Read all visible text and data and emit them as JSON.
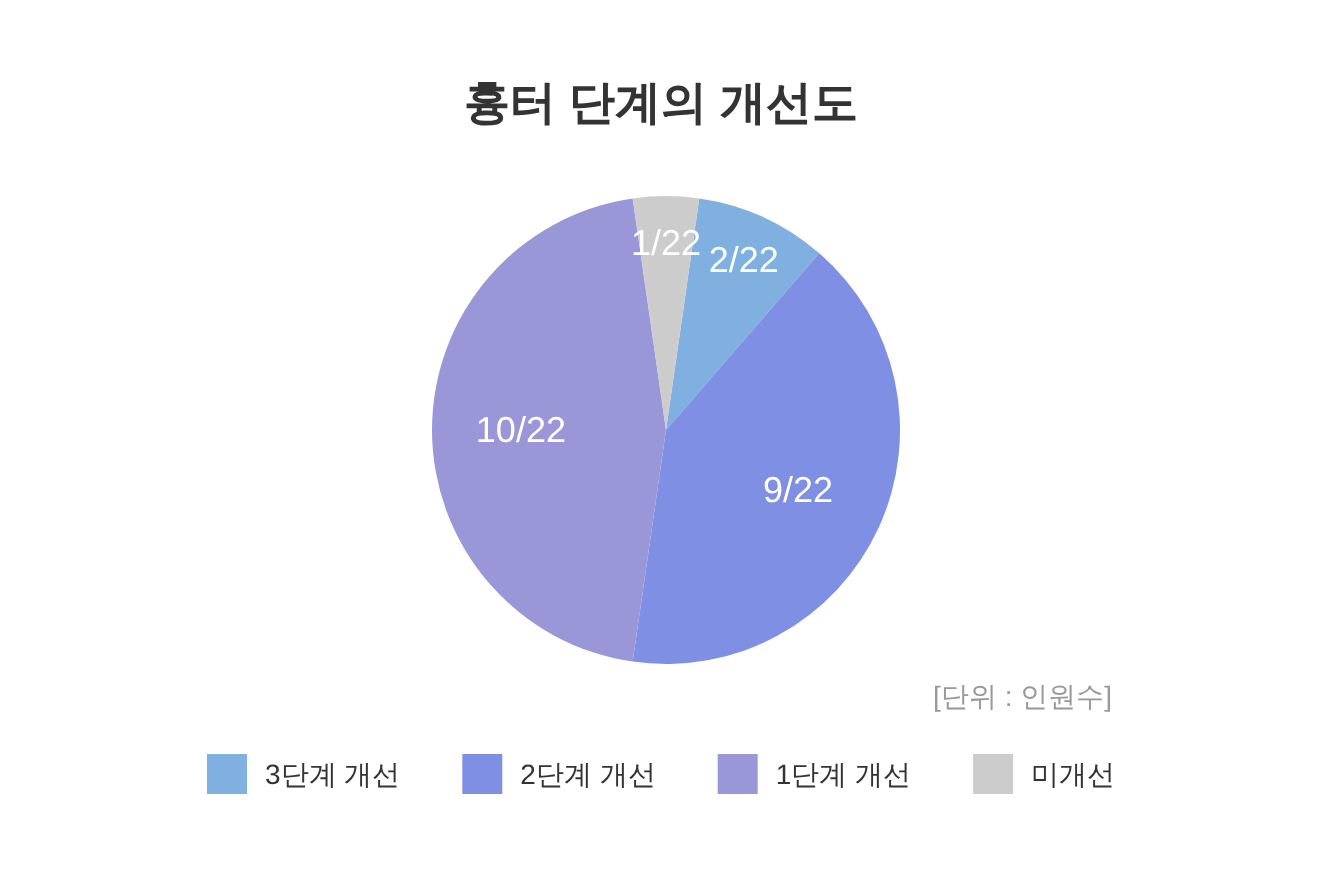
{
  "chart_data": {
    "type": "pie",
    "title": "흉터 단계의 개선도",
    "categories": [
      "3단계 개선",
      "2단계 개선",
      "1단계 개선",
      "미개선"
    ],
    "values": [
      2,
      9,
      10,
      1
    ],
    "value_labels": [
      "2/22",
      "9/22",
      "10/22",
      "1/22"
    ],
    "colors": [
      "#7fb0e0",
      "#7f8fe3",
      "#9a97d8",
      "#cccccc"
    ],
    "legend": "bottom",
    "annotations": [
      "[단위 : 인원수]"
    ]
  }
}
